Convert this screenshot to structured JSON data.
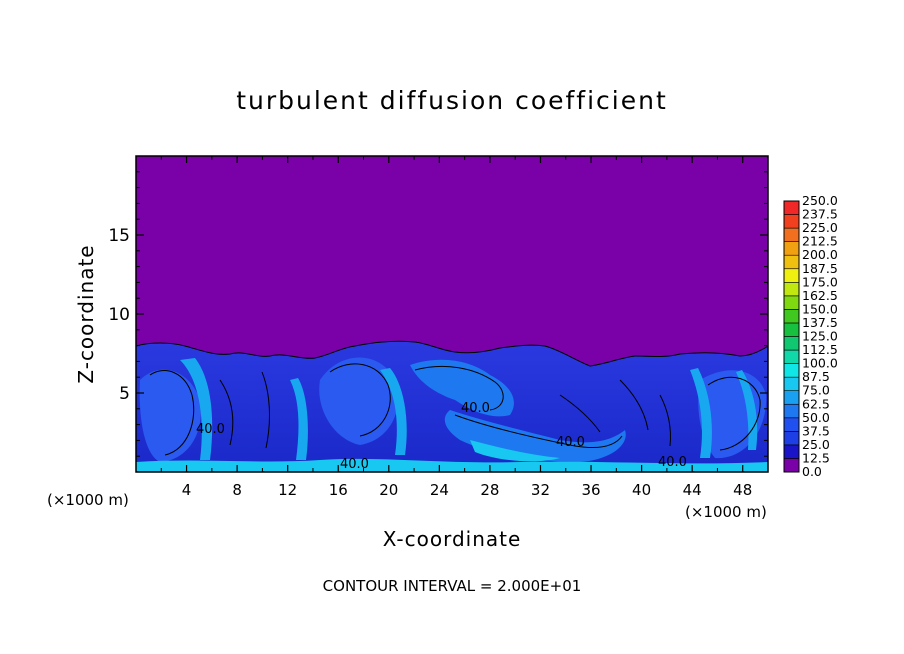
{
  "chart_data": {
    "type": "heatmap",
    "title": "turbulent diffusion coefficient",
    "xlabel": "X-coordinate",
    "ylabel": "Z-coordinate",
    "x_unit": "(×1000 m)",
    "z_unit": "(×1000 m)",
    "xlim": [
      0,
      50
    ],
    "ylim": [
      0,
      20
    ],
    "x_ticks": [
      "4",
      "8",
      "12",
      "16",
      "20",
      "24",
      "28",
      "32",
      "36",
      "40",
      "44",
      "48"
    ],
    "y_ticks": [
      "5",
      "10",
      "15"
    ],
    "colorbar_levels": [
      "0.0",
      "12.5",
      "25.0",
      "37.5",
      "50.0",
      "62.5",
      "75.0",
      "87.5",
      "100.0",
      "112.5",
      "125.0",
      "137.5",
      "150.0",
      "162.5",
      "175.0",
      "187.5",
      "200.0",
      "212.5",
      "225.0",
      "237.5",
      "250.0"
    ],
    "colorbar_colors": [
      "#7a00a8",
      "#1a14c8",
      "#1e3ee6",
      "#2050f0",
      "#1e78f0",
      "#1aa0f0",
      "#18c8f0",
      "#10e6e6",
      "#10d8a8",
      "#10c870",
      "#18c040",
      "#40c820",
      "#80d810",
      "#c0e810",
      "#f0f010",
      "#f0c010",
      "#f0a010",
      "#f07020",
      "#f04020",
      "#f02828",
      "#f06060"
    ],
    "contour_labels": [
      "40.0",
      "40.0",
      "40.0",
      "40.0",
      "40.0"
    ],
    "contour_interval": "CONTOUR INTERVAL = 2.000E+01"
  }
}
